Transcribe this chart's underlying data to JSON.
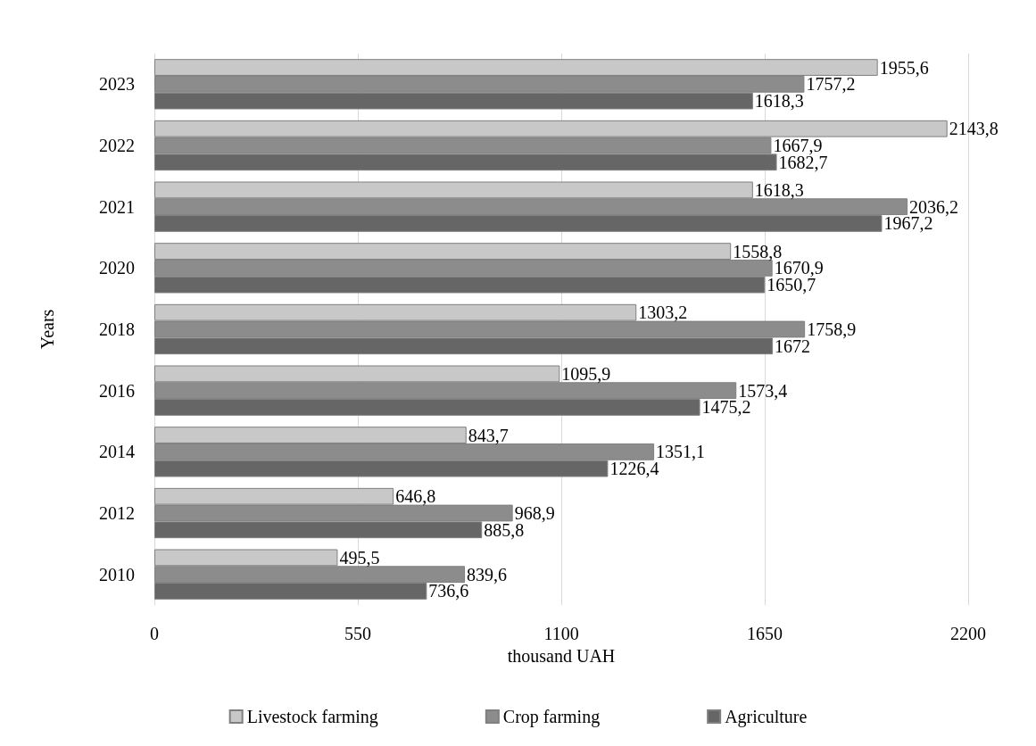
{
  "chart_data": {
    "type": "bar",
    "orientation": "horizontal",
    "xlabel": "thousand UAH",
    "ylabel": "Years",
    "categories": [
      "2023",
      "2022",
      "2021",
      "2020",
      "2018",
      "2016",
      "2014",
      "2012",
      "2010"
    ],
    "series": [
      {
        "name": "Livestock farming",
        "color": "#c8c8c8",
        "values": [
          1955.6,
          2143.8,
          1618.3,
          1558.8,
          1303.2,
          1095.9,
          843.7,
          646.8,
          495.5
        ],
        "value_labels": [
          "1955,6",
          "2143,8",
          "1618,3",
          "1558,8",
          "1303,2",
          "1095,9",
          "843,7",
          "646,8",
          "495,5"
        ]
      },
      {
        "name": "Crop farming",
        "color": "#8c8c8c",
        "values": [
          1757.2,
          1667.9,
          2036.2,
          1670.9,
          1758.9,
          1573.4,
          1351.1,
          968.9,
          839.6
        ],
        "value_labels": [
          "1757,2",
          "1667,9",
          "2036,2",
          "1670,9",
          "1758,9",
          "1573,4",
          "1351,1",
          "968,9",
          "839,6"
        ]
      },
      {
        "name": "Agriculture",
        "color": "#666666",
        "values": [
          1618.3,
          1682.7,
          1967.2,
          1650.7,
          1672,
          1475.2,
          1226.4,
          885.8,
          736.6
        ],
        "value_labels": [
          "1618,3",
          "1682,7",
          "1967,2",
          "1650,7",
          "1672",
          "1475,2",
          "1226,4",
          "885,8",
          "736,6"
        ]
      }
    ],
    "xlim": [
      0,
      2200
    ],
    "xticks": [
      0,
      550,
      1100,
      1650,
      2200
    ],
    "grid": "x",
    "legend": "bottom"
  }
}
